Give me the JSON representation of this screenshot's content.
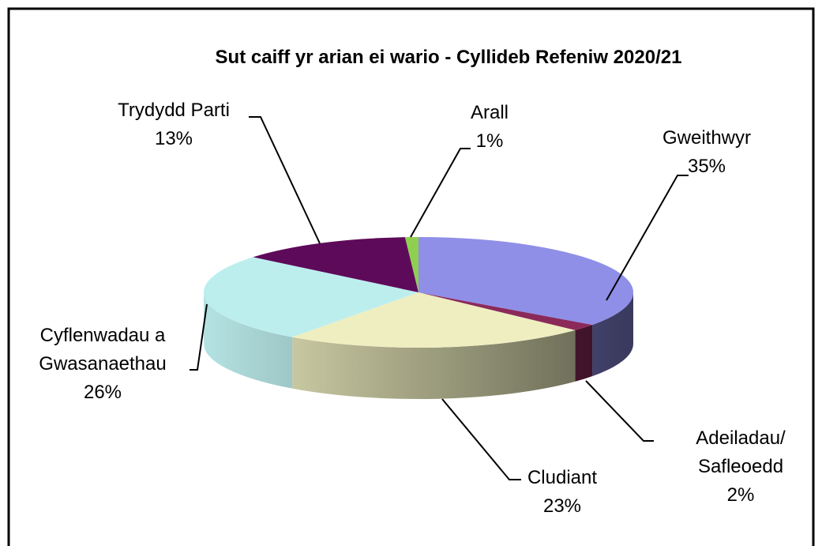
{
  "chart_data": {
    "type": "pie",
    "title": "Sut caiff yr arian ei wario - Cyllideb Refeniw 2020/21",
    "categories": [
      "Gweithwyr",
      "Adeiladau/\nSafleoedd",
      "Cludiant",
      "Cyflenwadau a\nGwasanaethau",
      "Trydydd Parti",
      "Arall"
    ],
    "values": [
      35,
      2,
      23,
      26,
      13,
      1
    ],
    "value_labels": [
      "35%",
      "2%",
      "23%",
      "26%",
      "13%",
      "1%"
    ],
    "colors": [
      "#8f8fe8",
      "#8b2a5a",
      "#eeeec0",
      "#bdeeee",
      "#5e0a5a",
      "#8fcf50"
    ]
  }
}
